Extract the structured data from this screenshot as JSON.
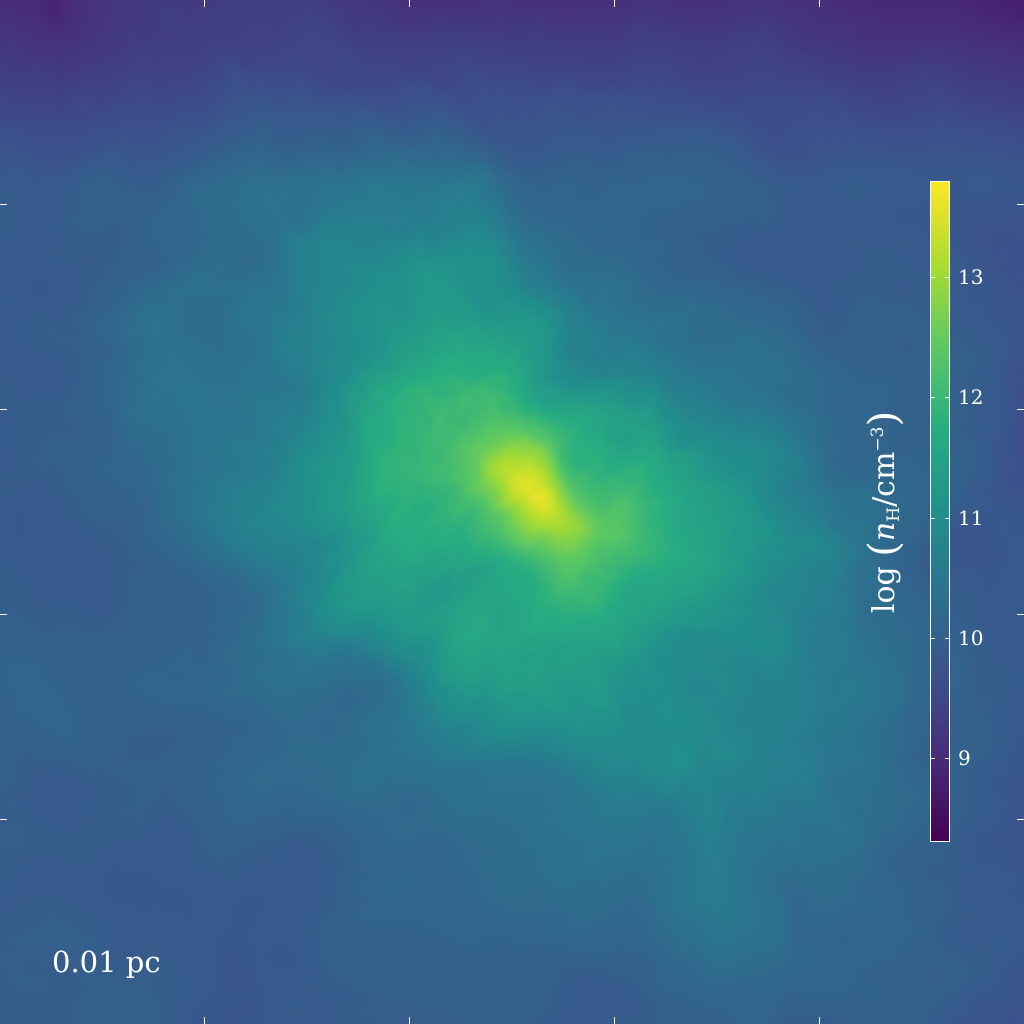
{
  "figure": {
    "scale_label": "0.01 pc",
    "colormap_name": "viridis",
    "colorbar": {
      "label_log": "log",
      "label_var": "n",
      "label_sub": "H",
      "label_unit": "cm",
      "label_exp": "−3",
      "range": [
        8.3,
        13.8
      ],
      "ticks": [
        {
          "value": 13,
          "label": "13"
        },
        {
          "value": 12,
          "label": "12"
        },
        {
          "value": 11,
          "label": "11"
        },
        {
          "value": 10,
          "label": "10"
        },
        {
          "value": 9,
          "label": "9"
        }
      ]
    },
    "colors": {
      "viridis_stops": [
        "#440154",
        "#472c7a",
        "#3b518b",
        "#2c718e",
        "#21908d",
        "#27ad81",
        "#5cc863",
        "#aadc32",
        "#fde725"
      ],
      "axis_color": "#ffffff"
    }
  }
}
